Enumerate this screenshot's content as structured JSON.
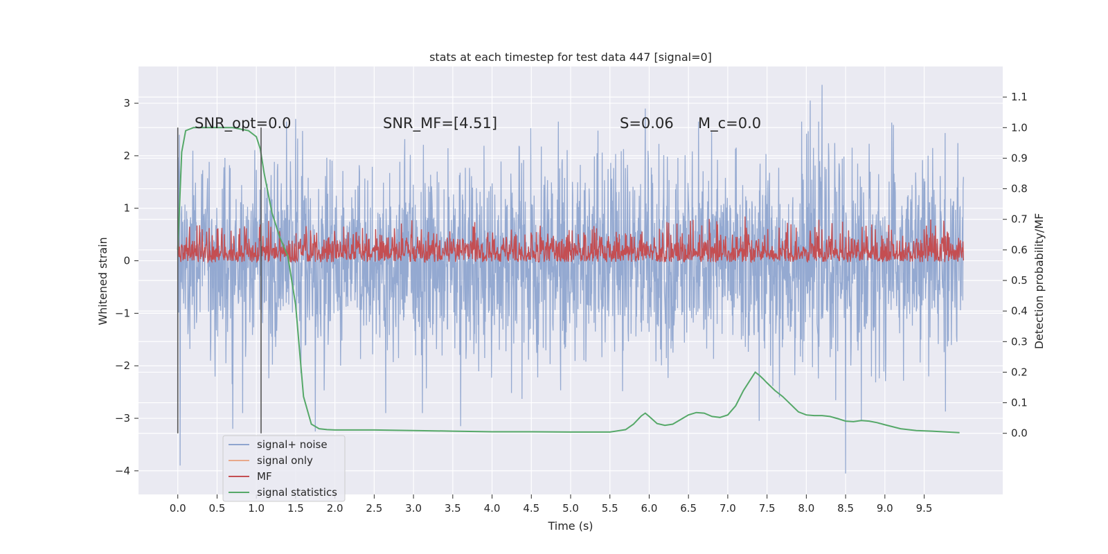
{
  "chart_data": {
    "type": "line",
    "title": "stats at each timestep for test data 447 [signal=0]",
    "xlabel": "Time (s)",
    "ylabel": "Whitened strain",
    "y2label": "Detection probability/MF",
    "xlim": [
      -0.5,
      10.5
    ],
    "ylim": [
      -4.45,
      3.7
    ],
    "y2lim": [
      -0.2,
      1.2
    ],
    "xticks": [
      "0.0",
      "0.5",
      "1.0",
      "1.5",
      "2.0",
      "2.5",
      "3.0",
      "3.5",
      "4.0",
      "4.5",
      "5.0",
      "5.5",
      "6.0",
      "6.5",
      "7.0",
      "7.5",
      "8.0",
      "8.5",
      "9.0",
      "9.5"
    ],
    "yticks": [
      "3",
      "2",
      "1",
      "0",
      "−1",
      "−2",
      "−3",
      "−4"
    ],
    "y2ticks": [
      "1.1",
      "1.0",
      "0.9",
      "0.8",
      "0.7",
      "0.6",
      "0.5",
      "0.4",
      "0.3",
      "0.2",
      "0.1",
      "0.0"
    ],
    "grid": true,
    "legend_position": "lower-left",
    "annotations": {
      "snr_opt": "SNR_opt=0.0",
      "snr_mf": "SNR_MF=[4.51]",
      "s": "S=0.06",
      "mc": "M_c=0.0"
    },
    "vlines_x": [
      0.0,
      1.06
    ],
    "series": [
      {
        "name": "signal+ noise",
        "color": "#8fa5cf",
        "axis": "left",
        "x_range": [
          0.0,
          10.0
        ],
        "envelope_mean": 0.0,
        "envelope_std": 0.95,
        "extremes": [
          {
            "x": 0.03,
            "y": -3.9
          },
          {
            "x": 0.02,
            "y": 2.4
          },
          {
            "x": 0.7,
            "y": -3.2
          },
          {
            "x": 1.5,
            "y": 2.7
          },
          {
            "x": 1.75,
            "y": -3.25
          },
          {
            "x": 3.6,
            "y": -3.15
          },
          {
            "x": 5.95,
            "y": 2.9
          },
          {
            "x": 7.4,
            "y": -3.05
          },
          {
            "x": 8.05,
            "y": 3.05
          },
          {
            "x": 8.2,
            "y": 3.35
          },
          {
            "x": 8.5,
            "y": -4.05
          },
          {
            "x": 8.7,
            "y": -3.05
          }
        ]
      },
      {
        "name": "signal only",
        "color": "#e8a88a",
        "axis": "left",
        "values": []
      },
      {
        "name": "MF",
        "color": "#c44e52",
        "axis": "right",
        "x_range": [
          0.0,
          10.0
        ],
        "base": 0.56,
        "peak_typical": 0.7,
        "peak_max": 0.74
      },
      {
        "name": "signal statistics",
        "color": "#55a868",
        "axis": "right",
        "x": [
          0.0,
          0.05,
          0.1,
          0.15,
          0.2,
          0.3,
          0.5,
          0.7,
          0.9,
          1.0,
          1.05,
          1.1,
          1.2,
          1.3,
          1.4,
          1.5,
          1.6,
          1.7,
          1.8,
          1.9,
          2.0,
          2.5,
          3.0,
          3.5,
          4.0,
          4.5,
          5.0,
          5.5,
          5.7,
          5.8,
          5.9,
          5.95,
          6.0,
          6.1,
          6.2,
          6.3,
          6.4,
          6.5,
          6.6,
          6.7,
          6.8,
          6.9,
          7.0,
          7.1,
          7.2,
          7.3,
          7.35,
          7.4,
          7.45,
          7.5,
          7.6,
          7.7,
          7.8,
          7.9,
          8.0,
          8.1,
          8.2,
          8.3,
          8.4,
          8.5,
          8.6,
          8.7,
          8.8,
          8.9,
          9.0,
          9.2,
          9.4,
          9.6,
          9.8,
          9.95
        ],
        "values": [
          0.6,
          0.92,
          0.99,
          0.995,
          1.0,
          1.0,
          1.0,
          1.0,
          0.99,
          0.97,
          0.93,
          0.85,
          0.72,
          0.64,
          0.58,
          0.42,
          0.12,
          0.03,
          0.015,
          0.012,
          0.011,
          0.011,
          0.009,
          0.007,
          0.005,
          0.005,
          0.004,
          0.004,
          0.012,
          0.03,
          0.057,
          0.066,
          0.055,
          0.032,
          0.026,
          0.03,
          0.045,
          0.06,
          0.068,
          0.066,
          0.055,
          0.052,
          0.06,
          0.09,
          0.14,
          0.18,
          0.2,
          0.19,
          0.178,
          0.165,
          0.14,
          0.12,
          0.095,
          0.07,
          0.06,
          0.058,
          0.058,
          0.055,
          0.048,
          0.04,
          0.038,
          0.042,
          0.04,
          0.035,
          0.028,
          0.015,
          0.009,
          0.007,
          0.004,
          0.002
        ]
      }
    ]
  }
}
